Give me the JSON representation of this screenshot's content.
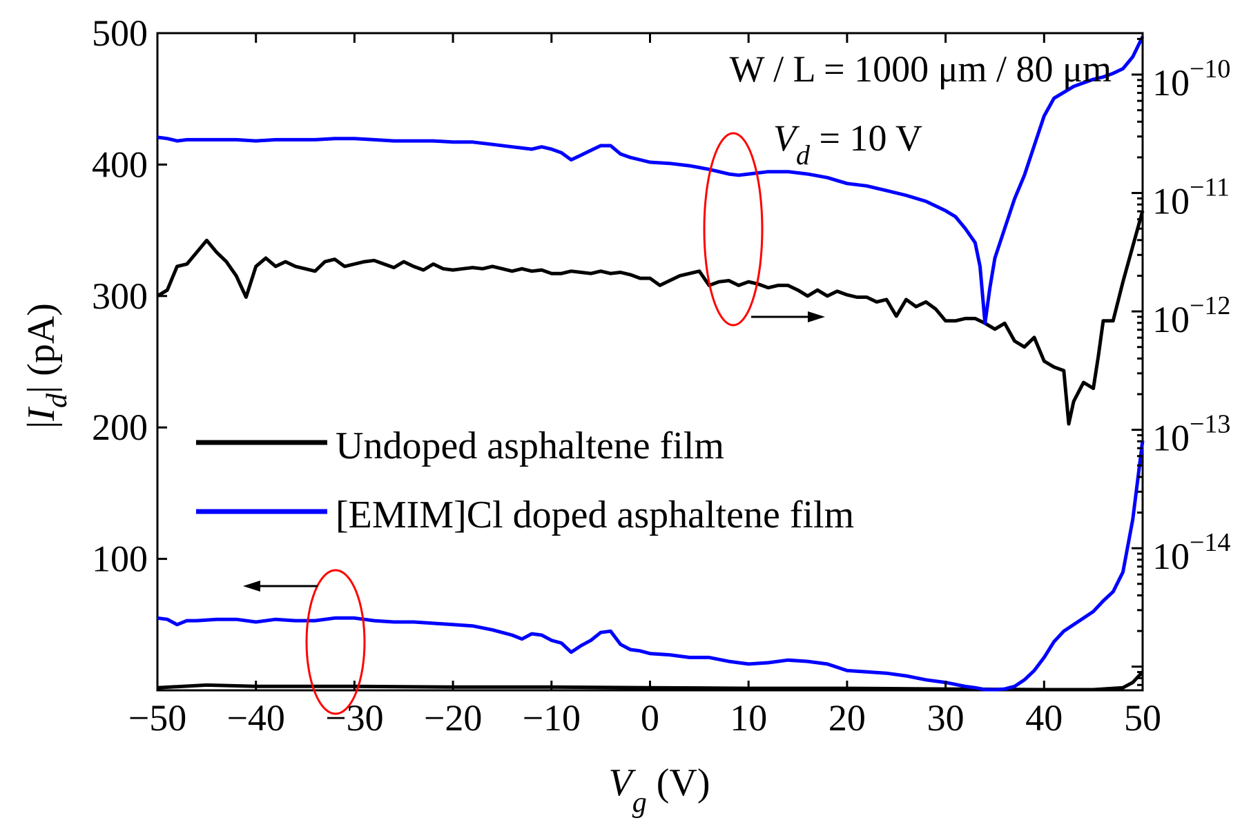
{
  "chart_data": {
    "type": "line",
    "xlabel": {
      "main": "V",
      "sub": "g",
      "unit": "(V)"
    },
    "ylabel_left": {
      "pre": "|",
      "main": "I",
      "sub": "d",
      "post": "| (pA)"
    },
    "x": {
      "range": [
        -50,
        50
      ],
      "ticks": [
        -50,
        -40,
        -30,
        -20,
        -10,
        0,
        10,
        20,
        30,
        40,
        50
      ],
      "tick_labels": [
        "−50",
        "−40",
        "−30",
        "−20",
        "−10",
        "0",
        "10",
        "20",
        "30",
        "40",
        "50"
      ]
    },
    "y_left": {
      "range": [
        0,
        500
      ],
      "ticks": [
        100,
        200,
        300,
        400,
        500
      ],
      "tick_labels": [
        "100",
        "200",
        "300",
        "400",
        "500"
      ]
    },
    "y_right": {
      "scale": "log",
      "range_exponent": [
        -15.2,
        -9.65
      ],
      "ticks_exponent": [
        -14,
        -13,
        -12,
        -11,
        -10
      ],
      "tick_labels": [
        {
          "base": "10",
          "exp": "−14"
        },
        {
          "base": "10",
          "exp": "−13"
        },
        {
          "base": "10",
          "exp": "−12"
        },
        {
          "base": "10",
          "exp": "−11"
        },
        {
          "base": "10",
          "exp": "−10"
        }
      ]
    },
    "annotations": {
      "geometry": "W / L = 1000 μm / 80 μm",
      "vd": {
        "main": "V",
        "sub": "d",
        "rest": " = 10 V"
      }
    },
    "legend": [
      {
        "label": "Undoped asphaltene film",
        "color": "#000000"
      },
      {
        "label": "[EMIM]Cl doped asphaltene film",
        "color": "#0000ff"
      }
    ],
    "series": [
      {
        "name": "Undoped asphaltene film (linear, left axis)",
        "axis": "left",
        "color": "#000000",
        "x": [
          -50,
          -45,
          -40,
          -30,
          -20,
          -10,
          0,
          10,
          20,
          30,
          40,
          45,
          48,
          49,
          50
        ],
        "y": [
          2,
          4,
          3,
          3,
          2.5,
          2.5,
          2,
          1.5,
          1.5,
          1,
          0.5,
          0.5,
          2,
          6,
          14
        ]
      },
      {
        "name": "[EMIM]Cl doped asphaltene film (linear, left axis)",
        "axis": "left",
        "color": "#0000ff",
        "x": [
          -50,
          -49,
          -48,
          -47,
          -46,
          -44,
          -42,
          -40,
          -38,
          -36,
          -34,
          -32,
          -30,
          -28,
          -26,
          -24,
          -22,
          -20,
          -18,
          -16,
          -14,
          -13,
          -12,
          -11,
          -10,
          -9,
          -8,
          -7,
          -6,
          -5,
          -4,
          -3,
          -2,
          -1,
          0,
          2,
          4,
          6,
          8,
          9,
          10,
          12,
          14,
          16,
          18,
          20,
          22,
          24,
          26,
          28,
          30,
          32,
          33,
          34,
          35,
          36,
          37,
          38,
          39,
          40,
          41,
          42,
          43,
          44,
          45,
          46,
          47,
          48,
          49,
          50
        ],
        "y": [
          55,
          54,
          50,
          53,
          53,
          54,
          54,
          52,
          54,
          53,
          53,
          55,
          55,
          53,
          52,
          52,
          51,
          50,
          49,
          46,
          42,
          39,
          43,
          42,
          38,
          36,
          29,
          34,
          38,
          44,
          45,
          35,
          31,
          30,
          28,
          27,
          25,
          25,
          22,
          21,
          20,
          21,
          23,
          22,
          20,
          15,
          14,
          13,
          11,
          8,
          6,
          3,
          2,
          0.5,
          0.5,
          1,
          3,
          8,
          15,
          25,
          37,
          45,
          50,
          55,
          60,
          68,
          75,
          90,
          130,
          190
        ]
      },
      {
        "name": "Undoped asphaltene film (log, right axis)",
        "axis": "right",
        "color": "#000000",
        "x": [
          -50,
          -49,
          -48,
          -47,
          -46,
          -45,
          -44,
          -43,
          -42,
          -41,
          -40,
          -39,
          -38,
          -37,
          -36,
          -35,
          -34,
          -33,
          -32,
          -31,
          -30,
          -29,
          -28,
          -27,
          -26,
          -25,
          -24,
          -23,
          -22,
          -21,
          -20,
          -19,
          -18,
          -17,
          -16,
          -15,
          -14,
          -13,
          -12,
          -11,
          -10,
          -9,
          -8,
          -7,
          -6,
          -5,
          -4,
          -3,
          -2,
          -1,
          0,
          1,
          2,
          3,
          4,
          5,
          6,
          7,
          8,
          9,
          10,
          11,
          12,
          13,
          14,
          15,
          16,
          17,
          18,
          19,
          20,
          21,
          22,
          23,
          24,
          25,
          26,
          27,
          28,
          29,
          30,
          31,
          32,
          33,
          34,
          35,
          36,
          37,
          38,
          39,
          40,
          41,
          42,
          42.5,
          43,
          44,
          45,
          45.5,
          46,
          47,
          48,
          49,
          50
        ],
        "y": [
          -11.87,
          -11.82,
          -11.62,
          -11.6,
          -11.5,
          -11.4,
          -11.5,
          -11.58,
          -11.7,
          -11.88,
          -11.62,
          -11.55,
          -11.62,
          -11.58,
          -11.62,
          -11.64,
          -11.66,
          -11.58,
          -11.56,
          -11.62,
          -11.6,
          -11.58,
          -11.57,
          -11.6,
          -11.63,
          -11.58,
          -11.62,
          -11.65,
          -11.6,
          -11.64,
          -11.65,
          -11.64,
          -11.63,
          -11.64,
          -11.62,
          -11.64,
          -11.66,
          -11.64,
          -11.66,
          -11.65,
          -11.68,
          -11.68,
          -11.66,
          -11.67,
          -11.68,
          -11.66,
          -11.68,
          -11.67,
          -11.69,
          -11.72,
          -11.72,
          -11.78,
          -11.74,
          -11.7,
          -11.68,
          -11.66,
          -11.78,
          -11.75,
          -11.74,
          -11.78,
          -11.75,
          -11.77,
          -11.8,
          -11.78,
          -11.78,
          -11.82,
          -11.87,
          -11.82,
          -11.87,
          -11.83,
          -11.86,
          -11.88,
          -11.88,
          -11.92,
          -11.9,
          -12.04,
          -11.9,
          -11.96,
          -11.92,
          -11.98,
          -12.08,
          -12.08,
          -12.06,
          -12.06,
          -12.1,
          -12.15,
          -12.1,
          -12.25,
          -12.3,
          -12.22,
          -12.42,
          -12.47,
          -12.5,
          -12.95,
          -12.76,
          -12.6,
          -12.65,
          -12.38,
          -12.08,
          -12.08,
          -11.75,
          -11.45,
          -11.15
        ]
      },
      {
        "name": "[EMIM]Cl doped asphaltene film (log, right axis)",
        "axis": "right",
        "color": "#0000ff",
        "x": [
          -50,
          -49,
          -48,
          -47,
          -46,
          -44,
          -42,
          -40,
          -38,
          -36,
          -34,
          -32,
          -30,
          -28,
          -26,
          -24,
          -22,
          -20,
          -18,
          -16,
          -14,
          -13,
          -12,
          -11,
          -10,
          -9,
          -8,
          -7,
          -6,
          -5,
          -4,
          -3,
          -2,
          -1,
          0,
          2,
          4,
          6,
          8,
          9,
          10,
          12,
          14,
          16,
          18,
          20,
          22,
          24,
          26,
          28,
          30,
          31,
          32,
          33,
          33.5,
          34,
          34.5,
          35,
          36,
          37,
          38,
          39,
          40,
          41,
          42,
          43,
          44,
          45,
          46,
          47,
          48,
          49,
          50
        ],
        "y": [
          -10.53,
          -10.54,
          -10.56,
          -10.55,
          -10.55,
          -10.55,
          -10.55,
          -10.56,
          -10.55,
          -10.55,
          -10.55,
          -10.54,
          -10.54,
          -10.55,
          -10.56,
          -10.56,
          -10.56,
          -10.57,
          -10.57,
          -10.59,
          -10.61,
          -10.62,
          -10.63,
          -10.61,
          -10.63,
          -10.66,
          -10.72,
          -10.68,
          -10.64,
          -10.6,
          -10.6,
          -10.67,
          -10.7,
          -10.72,
          -10.74,
          -10.75,
          -10.77,
          -10.8,
          -10.84,
          -10.85,
          -10.84,
          -10.82,
          -10.82,
          -10.84,
          -10.87,
          -10.92,
          -10.94,
          -10.98,
          -11.02,
          -11.07,
          -11.15,
          -11.2,
          -11.3,
          -11.42,
          -11.62,
          -12.1,
          -11.8,
          -11.55,
          -11.3,
          -11.05,
          -10.85,
          -10.6,
          -10.35,
          -10.2,
          -10.15,
          -10.1,
          -10.07,
          -10.04,
          -10.02,
          -9.99,
          -9.95,
          -9.85,
          -9.68
        ]
      }
    ]
  }
}
